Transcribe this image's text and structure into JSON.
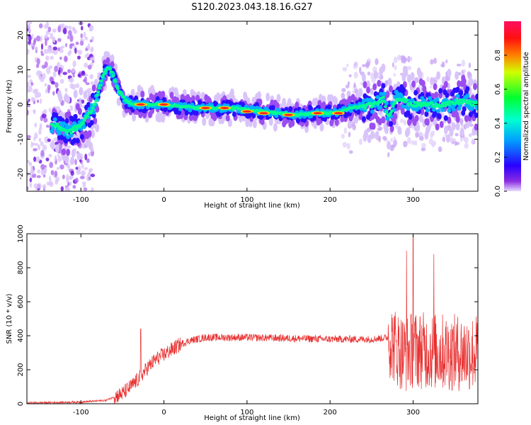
{
  "title": "S120.2023.043.18.16.G27",
  "chart_data": [
    {
      "type": "heatmap",
      "xlabel": "Height of straight line (km)",
      "ylabel": "Frequency (Hz)",
      "xlim": [
        -165,
        378
      ],
      "ylim": [
        -25,
        24
      ],
      "x_ticks": [
        -100,
        0,
        100,
        200,
        300
      ],
      "y_ticks": [
        20,
        10,
        0,
        -10,
        -20
      ],
      "colorbar": {
        "label": "Normalized spectral amplitude",
        "range": [
          0,
          1
        ],
        "ticks": [
          "0.0",
          "0.2",
          "0.4",
          "0.6",
          "0.8"
        ]
      },
      "ridge": {
        "x": [
          -130,
          -115,
          -100,
          -85,
          -75,
          -68,
          -62,
          -55,
          -45,
          -35,
          -20,
          0,
          20,
          40,
          60,
          80,
          100,
          120,
          140,
          160,
          180,
          200,
          215,
          225,
          240,
          255,
          265,
          270,
          280,
          300,
          320,
          340,
          360,
          375
        ],
        "y": [
          -6,
          -8,
          -6,
          -1,
          7,
          11,
          9,
          4,
          1,
          0,
          0,
          0,
          -0.5,
          -1,
          -1,
          -1,
          -1.5,
          -2,
          -2.5,
          -3,
          -2.5,
          -2.5,
          -2,
          -1,
          -0.5,
          0,
          2,
          -4,
          2,
          0,
          0,
          0,
          1,
          0
        ]
      },
      "peaks": [
        {
          "x": -28,
          "y": 0
        },
        {
          "x": 0,
          "y": 0
        },
        {
          "x": 50,
          "y": -1
        },
        {
          "x": 73,
          "y": -1
        },
        {
          "x": 100,
          "y": -2
        },
        {
          "x": 120,
          "y": -2.5
        },
        {
          "x": 150,
          "y": -3
        },
        {
          "x": 185,
          "y": -2.5
        },
        {
          "x": 210,
          "y": -2.5
        }
      ]
    },
    {
      "type": "line",
      "xlabel": "Height of straight line (km)",
      "ylabel": "SNR (10 * v/v)",
      "xlim": [
        -165,
        378
      ],
      "ylim": [
        0,
        1000
      ],
      "x_ticks": [
        -100,
        0,
        100,
        200,
        300
      ],
      "y_ticks": [
        0,
        200,
        400,
        600,
        800,
        1000
      ],
      "series_color": "#e83030",
      "trend": {
        "x": [
          -165,
          -100,
          -70,
          -50,
          -40,
          -30,
          -20,
          -10,
          0,
          10,
          20,
          30,
          50,
          100,
          150,
          200,
          250,
          270,
          280,
          290,
          300,
          320,
          350,
          378
        ],
        "y": [
          5,
          10,
          20,
          60,
          100,
          150,
          210,
          260,
          290,
          320,
          350,
          370,
          390,
          390,
          385,
          380,
          380,
          390,
          330,
          290,
          320,
          310,
          300,
          300
        ]
      },
      "spikes": [
        {
          "x": -28,
          "y": 440
        },
        {
          "x": 300,
          "y": 1000
        },
        {
          "x": 292,
          "y": 900
        },
        {
          "x": 325,
          "y": 880
        }
      ]
    }
  ]
}
